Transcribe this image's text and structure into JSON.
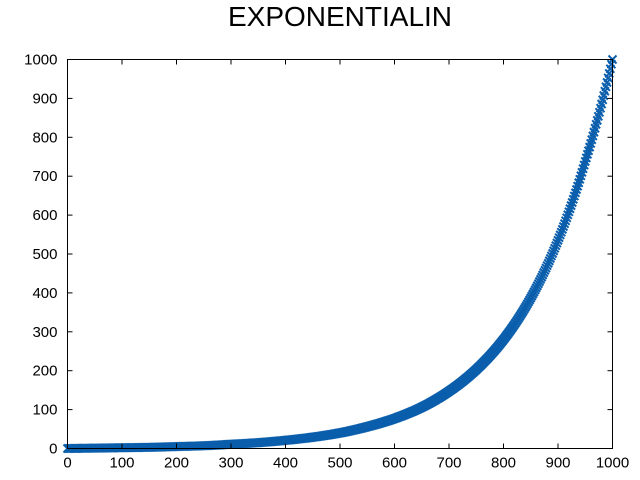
{
  "chart_data": {
    "type": "scatter",
    "title": "EXPONENTIALIN",
    "xlabel": "",
    "ylabel": "",
    "xlim": [
      0,
      1000
    ],
    "ylim": [
      0,
      1000
    ],
    "x_ticks": [
      0,
      100,
      200,
      300,
      400,
      500,
      600,
      700,
      800,
      900,
      1000
    ],
    "y_ticks": [
      0,
      100,
      200,
      300,
      400,
      500,
      600,
      700,
      800,
      900,
      1000
    ],
    "x_tick_labels": [
      "0",
      "100",
      "200",
      "300",
      "400",
      "500",
      "600",
      "700",
      "800",
      "900",
      "1000"
    ],
    "y_tick_labels": [
      "0",
      "100",
      "200",
      "300",
      "400",
      "500",
      "600",
      "700",
      "800",
      "900",
      "1000"
    ],
    "grid": false,
    "marker": "x-cross",
    "color": "#0a5eac",
    "series": [
      {
        "x": [
          0,
          50,
          100,
          150,
          200,
          250,
          300,
          350,
          400,
          450,
          500,
          550,
          600,
          650,
          700,
          750,
          800,
          850,
          900,
          950,
          1000
        ],
        "values": [
          0,
          1,
          2,
          3,
          5,
          7,
          11,
          15,
          21,
          29,
          40,
          56,
          77,
          106,
          147,
          203,
          280,
          387,
          535,
          738,
          1000
        ]
      }
    ]
  }
}
